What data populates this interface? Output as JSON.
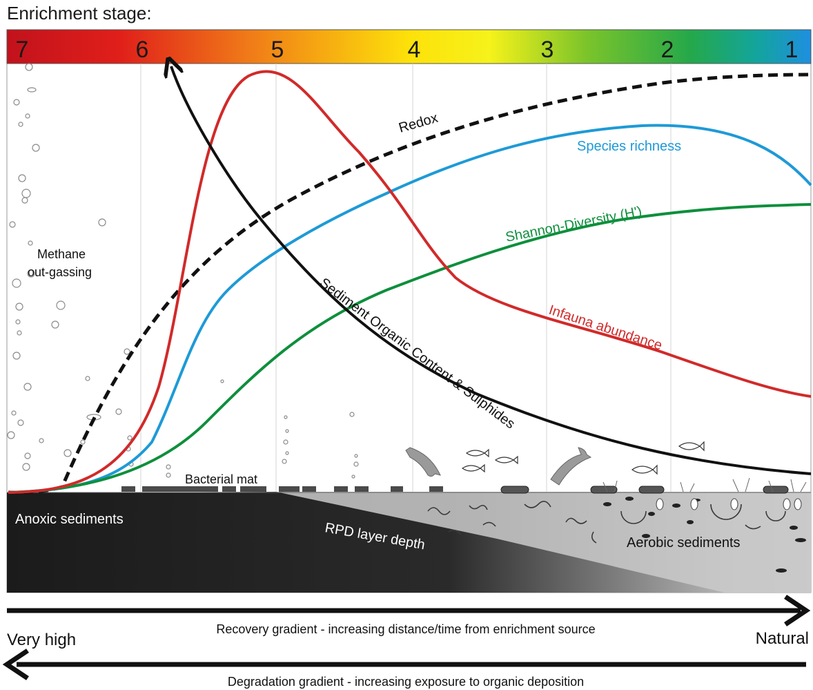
{
  "header": {
    "title": "Enrichment stage:"
  },
  "stages": [
    "7",
    "6",
    "5",
    "4",
    "3",
    "2",
    "1"
  ],
  "curves": {
    "redox": "Redox",
    "species_richness": "Species richness",
    "shannon": "Shannon-Diversity (H')",
    "infauna": "Infauna abundance",
    "organic": "Sediment Organic Content & Sulphides"
  },
  "annotations": {
    "methane_line1": "Methane",
    "methane_line2": "out-gassing",
    "bacterial_mat": "Bacterial mat",
    "anoxic": "Anoxic sediments",
    "rpd": "RPD layer depth",
    "aerobic": "Aerobic sediments"
  },
  "gradients": {
    "recovery": "Recovery gradient - increasing distance/time from enrichment source",
    "degradation": "Degradation gradient - increasing exposure to organic deposition",
    "left_end": "Very high",
    "right_end": "Natural"
  },
  "colors": {
    "redox": "#111111",
    "species_richness": "#1e9ad6",
    "shannon": "#0e8f3c",
    "infauna": "#d12a2a",
    "organic": "#111111",
    "sediment_dark": "#1b1b1b",
    "sediment_light": "#c9c9c9"
  }
}
